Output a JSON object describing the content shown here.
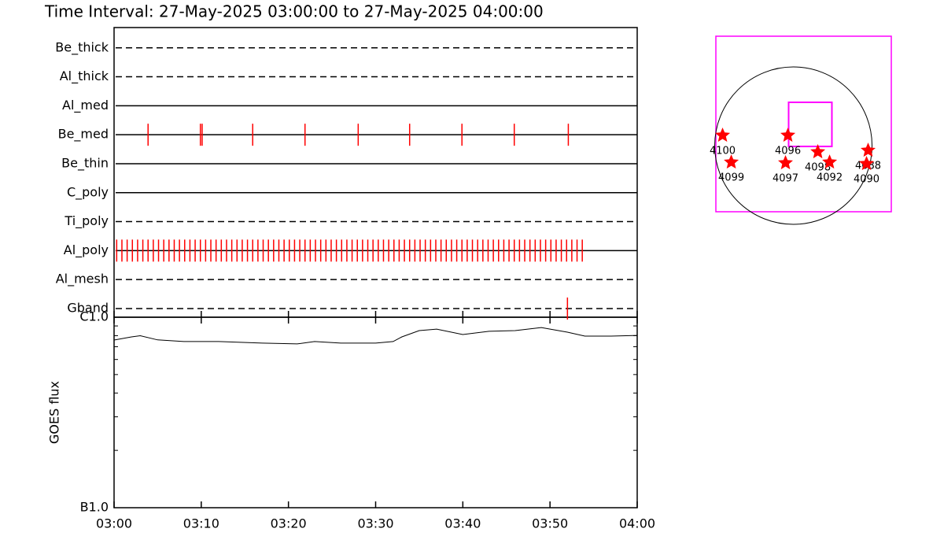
{
  "chart_data": {
    "type": "timeline",
    "title": "Time Interval: 27-May-2025 03:00:00 to 27-May-2025 04:00:00",
    "xlim": [
      0,
      60
    ],
    "xticks": [
      {
        "value": 0,
        "label": "03:00"
      },
      {
        "value": 10,
        "label": "03:10"
      },
      {
        "value": 20,
        "label": "03:20"
      },
      {
        "value": 30,
        "label": "03:30"
      },
      {
        "value": 40,
        "label": "03:40"
      },
      {
        "value": 50,
        "label": "03:50"
      },
      {
        "value": 60,
        "label": "04:00"
      }
    ],
    "event_color": "#ff0000",
    "filters": [
      {
        "name": "Be_thick",
        "style": "dashed",
        "events": []
      },
      {
        "name": "Al_thick",
        "style": "dashed",
        "events": []
      },
      {
        "name": "Al_med",
        "style": "solid",
        "events": []
      },
      {
        "name": "Be_med",
        "style": "solid",
        "events": [
          3.9,
          9.9,
          10.1,
          15.9,
          21.9,
          28.0,
          33.9,
          39.9,
          45.9,
          52.1
        ]
      },
      {
        "name": "Be_thin",
        "style": "solid",
        "events": []
      },
      {
        "name": "C_poly",
        "style": "solid",
        "events": []
      },
      {
        "name": "Ti_poly",
        "style": "dashed",
        "events": []
      },
      {
        "name": "Al_poly",
        "style": "solid",
        "events": [
          0.3,
          0.9,
          1.5,
          2.1,
          2.7,
          3.3,
          3.9,
          4.5,
          5.1,
          5.7,
          6.3,
          6.9,
          7.5,
          8.1,
          8.7,
          9.3,
          9.9,
          10.5,
          11.1,
          11.7,
          12.3,
          12.9,
          13.5,
          14.1,
          14.7,
          15.3,
          15.9,
          16.5,
          17.1,
          17.7,
          18.3,
          18.9,
          19.5,
          20.1,
          20.7,
          21.3,
          21.9,
          22.5,
          23.1,
          23.7,
          24.3,
          24.9,
          25.5,
          26.1,
          26.7,
          27.3,
          27.9,
          28.5,
          29.1,
          29.7,
          30.3,
          30.9,
          31.5,
          32.1,
          32.7,
          33.3,
          33.9,
          34.5,
          35.1,
          35.7,
          36.3,
          36.9,
          37.5,
          38.1,
          38.7,
          39.3,
          39.9,
          40.5,
          41.1,
          41.7,
          42.3,
          42.9,
          43.5,
          44.1,
          44.7,
          45.3,
          45.9,
          46.5,
          47.1,
          47.7,
          48.3,
          48.9,
          49.5,
          50.1,
          50.7,
          51.3,
          51.9,
          52.5,
          53.1,
          53.7
        ]
      },
      {
        "name": "Al_mesh",
        "style": "dashed",
        "events": []
      },
      {
        "name": "Gband",
        "style": "dashed",
        "events": [
          52.0
        ]
      }
    ],
    "goes": {
      "type": "line",
      "ylabel": "GOES flux",
      "log": true,
      "ylim": [
        1e-07,
        1e-06
      ],
      "yticks": [
        {
          "value": 1e-07,
          "label": "B1.0"
        },
        {
          "value": 1e-06,
          "label": "C1.0"
        }
      ],
      "yminor_ticks": [
        2e-07,
        3e-07,
        4e-07,
        5e-07,
        6e-07,
        7e-07,
        8e-07,
        9e-07
      ],
      "x": [
        0,
        2,
        3,
        5,
        8,
        12,
        17,
        21,
        23,
        26,
        30,
        32,
        33,
        35,
        37,
        40,
        43,
        46,
        49,
        52,
        54,
        57,
        60
      ],
      "values": [
        7.59e-07,
        7.88e-07,
        8e-07,
        7.6e-07,
        7.45e-07,
        7.45e-07,
        7.31e-07,
        7.24e-07,
        7.45e-07,
        7.31e-07,
        7.31e-07,
        7.45e-07,
        7.88e-07,
        8.51e-07,
        8.66e-07,
        8.11e-07,
        8.43e-07,
        8.51e-07,
        8.83e-07,
        8.35e-07,
        7.96e-07,
        7.96e-07,
        8.03e-07
      ]
    },
    "map": {
      "type": "scatter",
      "xlim": [
        -946,
        1195
      ],
      "ylim": [
        -806,
        1334
      ],
      "disk_radius": 960,
      "fov": [
        -58,
        470,
        -10,
        528
      ],
      "color": "#ff0000",
      "frame_color": "#ff00ff",
      "regions": [
        {
          "label": "4100",
          "x": -864,
          "y": 125
        },
        {
          "label": "4099",
          "x": -758,
          "y": -202
        },
        {
          "label": "4096",
          "x": -67,
          "y": 125
        },
        {
          "label": "4097",
          "x": -96,
          "y": -211
        },
        {
          "label": "4098",
          "x": 298,
          "y": -77
        },
        {
          "label": "4092",
          "x": 442,
          "y": -202
        },
        {
          "label": "4088",
          "x": 912,
          "y": -58
        },
        {
          "label": "4090",
          "x": 893,
          "y": -221
        }
      ]
    }
  }
}
